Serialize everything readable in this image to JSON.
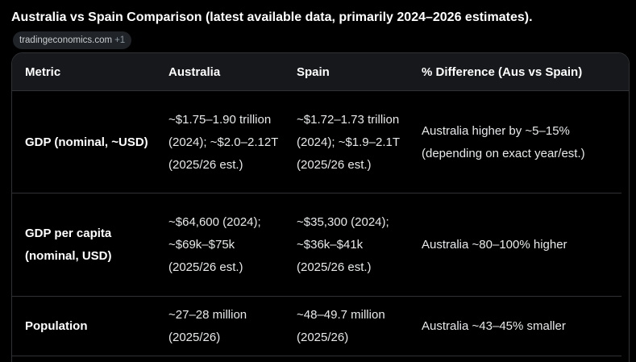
{
  "heading": "Australia vs Spain Comparison (latest available data, primarily 2024–2026 estimates).",
  "source_chip": {
    "label": "tradingeconomics.com",
    "more": "+1"
  },
  "table": {
    "headers": [
      "Metric",
      "Australia",
      "Spain",
      "% Difference (Aus vs Spain)"
    ],
    "rows": [
      {
        "metric": "GDP (nominal, ~USD)",
        "australia": "~$1.75–1.90 trillion (2024); ~$2.0–2.12T (2025/26 est.)",
        "spain": "~$1.72–1.73 trillion (2024); ~$1.9–2.1T (2025/26 est.)",
        "difference": "Australia higher by ~5–15% (depending on exact year/est.)"
      },
      {
        "metric": "GDP per capita (nominal, USD)",
        "australia": "~$64,600 (2024); ~$69k–$75k (2025/26 est.)",
        "spain": "~$35,300 (2024); ~$36k–$41k (2025/26 est.)",
        "difference": "Australia ~80–100% higher"
      },
      {
        "metric": "Population",
        "australia": "~27–28 million (2025/26)",
        "spain": "~48–49.7 million (2025/26)",
        "difference": "Australia ~43–45% smaller"
      }
    ]
  }
}
